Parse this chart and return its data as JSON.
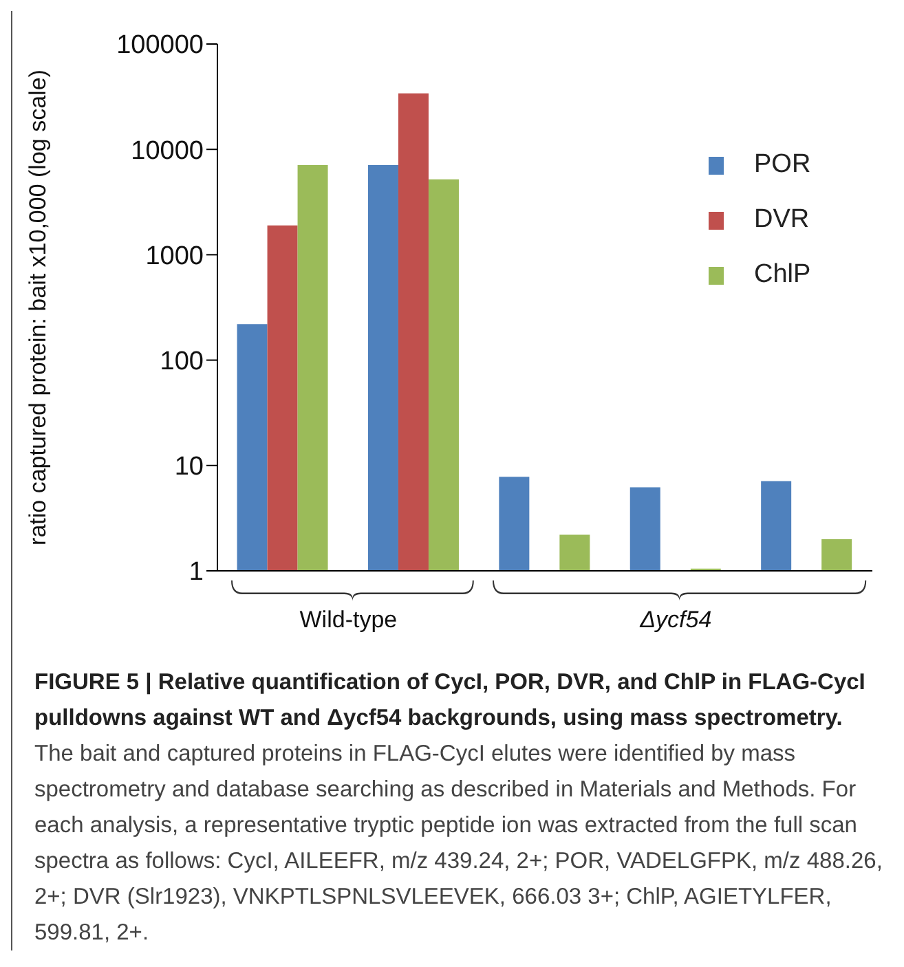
{
  "chart_data": {
    "type": "bar",
    "title": "FIGURE 5 | Relative quantification of CycI, POR, DVR, and ChlP in FLAG-CycI pulldowns against WT and Δycf54 backgrounds, using mass spectrometry.",
    "ylabel": "ratio captured protein: bait x10,000 (log scale)",
    "categories": [
      null,
      null,
      null,
      null,
      null
    ],
    "series": [
      {
        "name": "POR",
        "color": "#4f81bd",
        "values": [
          220,
          7100,
          7.8,
          6.2,
          7.1
        ]
      },
      {
        "name": "DVR",
        "color": "#c0504d",
        "values": [
          1900,
          34000,
          null,
          null,
          null
        ]
      },
      {
        "name": "ChlP",
        "color": "#9bbb59",
        "values": [
          7100,
          5200,
          2.2,
          1.05,
          2.0
        ]
      }
    ],
    "log": "y",
    "ylim": [
      1,
      100000
    ],
    "yticks": [
      1,
      10,
      100,
      1000,
      10000,
      100000
    ],
    "legend": "top right",
    "grid": false,
    "tick_labels": "y",
    "annotations": [
      "Wild-type",
      "Δycf54",
      "The bait and captured proteins in FLAG-CycI elutes were identified by mass spectrometry and database searching as described in Materials and Methods. For each analysis, a representative tryptic peptide ion was extracted from the full scan spectra as follows: CycI, AILEEFR, m/z 439.24, 2+; POR, VADELGFPK, m/z 488.26, 2+; DVR (Slr1923), VNKPTLSPNLSVLEEVEK, 666.03 3+; ChlP, AGIETYLFER, 599.81, 2+."
    ]
  }
}
